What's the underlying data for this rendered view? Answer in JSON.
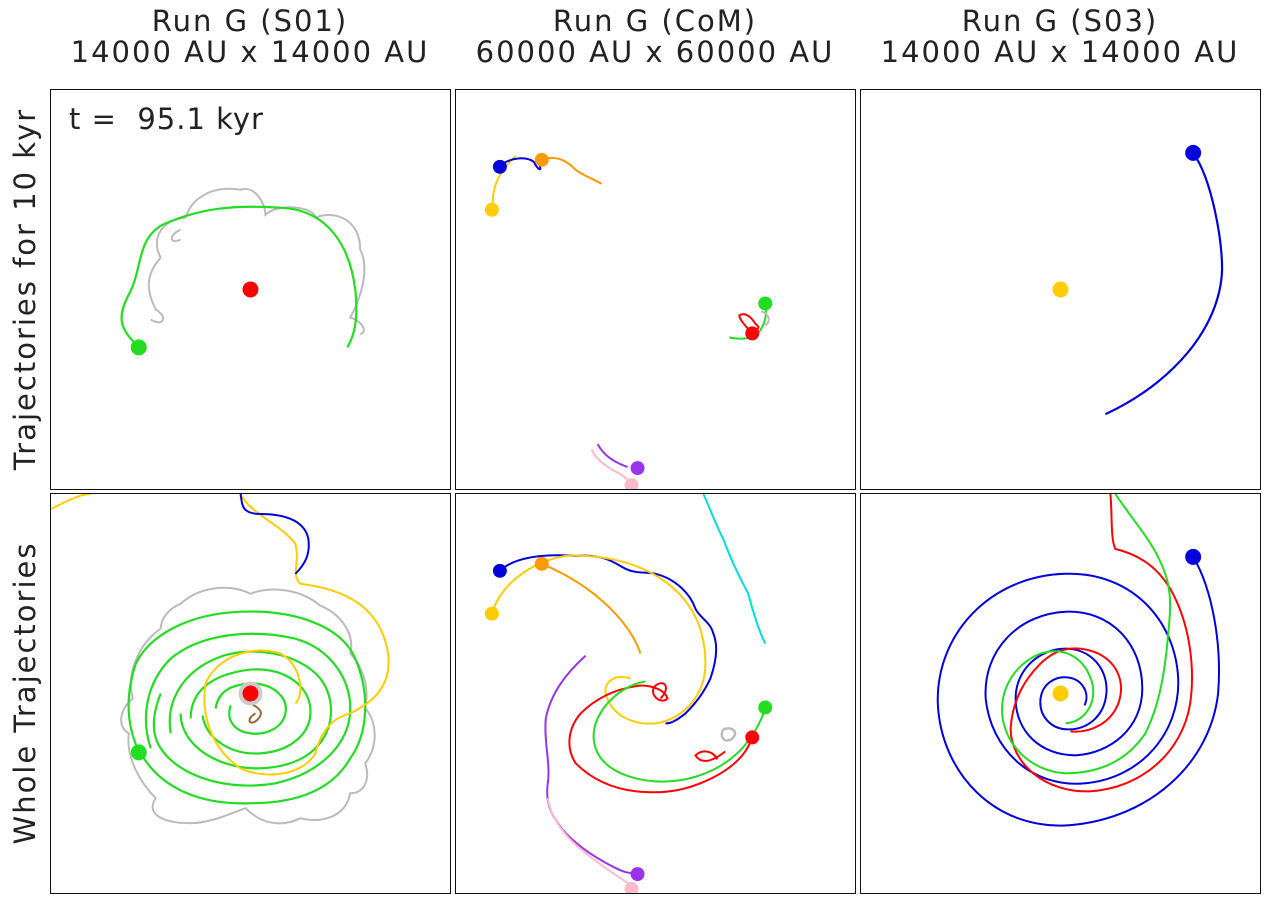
{
  "columns": [
    {
      "title": "Run G (S01)",
      "subtitle": "14000 AU x 14000 AU"
    },
    {
      "title": "Run G (CoM)",
      "subtitle": "60000 AU x 60000 AU"
    },
    {
      "title": "Run G (S03)",
      "subtitle": "14000 AU x 14000 AU"
    }
  ],
  "rows": [
    {
      "label": "Trajectories for 10 kyr"
    },
    {
      "label": "Whole Trajectories"
    }
  ],
  "time_label": "t =  95.1 kyr",
  "colors": {
    "red": "#ff0000",
    "green": "#22dd22",
    "blue": "#0000dd",
    "gold": "#ffcc00",
    "orange": "#ff9900",
    "purple": "#9933ee",
    "pink": "#ffbbcc",
    "cyan": "#00dddd",
    "gray": "#bbbbbb",
    "brown": "#996633"
  }
}
